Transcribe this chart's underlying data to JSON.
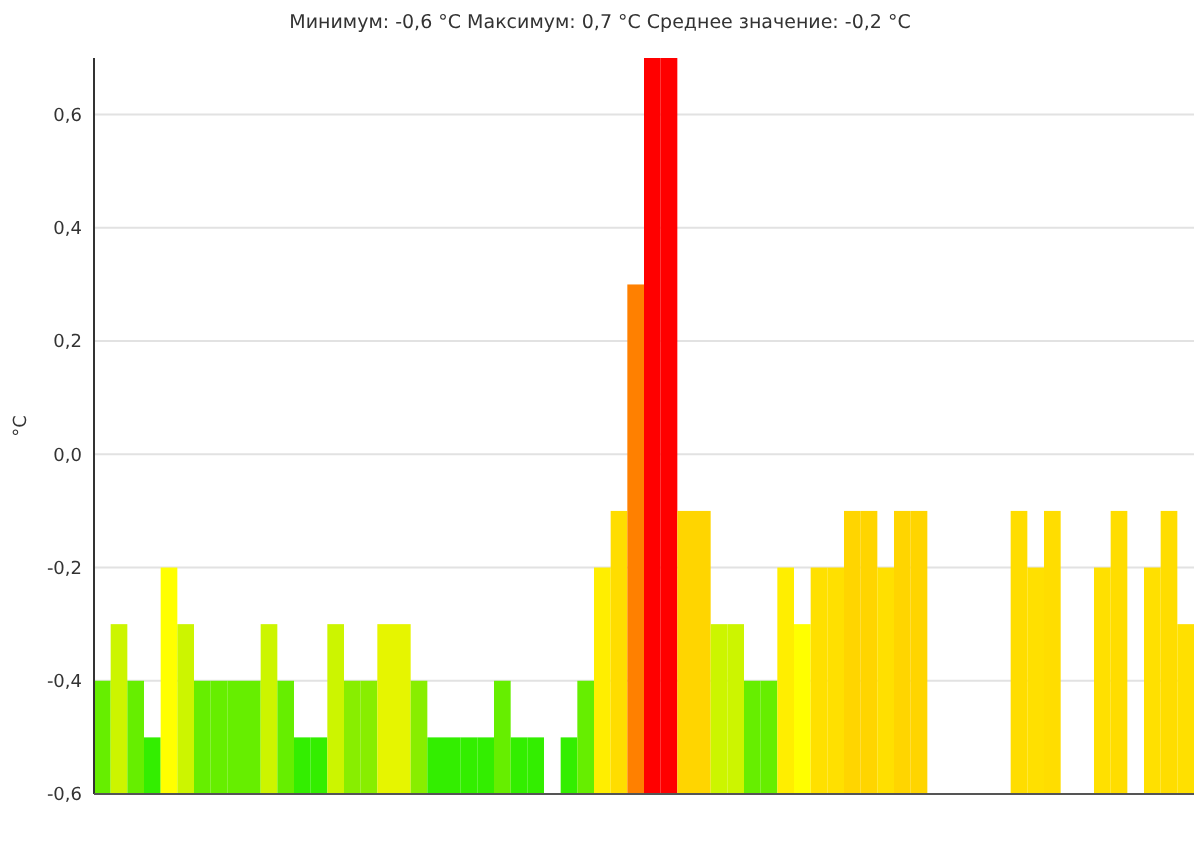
{
  "chart_data": {
    "type": "bar",
    "title": "Минимум:  -0,6  °C Максимум: 0,7  °C Среднее  значение:  -0,2  °C",
    "ylabel": "°C",
    "categories": [
      null,
      null,
      null,
      null,
      null,
      null,
      null,
      null,
      null,
      null,
      null,
      null,
      null,
      null,
      null,
      null,
      null,
      null,
      null,
      null,
      null,
      null,
      null,
      null,
      null,
      null,
      null,
      null,
      null,
      null,
      null,
      null,
      null,
      null,
      null,
      null,
      null,
      null,
      null,
      null,
      null,
      null,
      null,
      null,
      null,
      null,
      null,
      null,
      null,
      null,
      null,
      null,
      null,
      null,
      null,
      null,
      null,
      null,
      null,
      null,
      null,
      null,
      null,
      null,
      null,
      null
    ],
    "base": [
      -0.6,
      -0.6,
      -0.6,
      -0.6,
      -0.6,
      -0.6,
      -0.6,
      -0.6,
      -0.6,
      -0.6,
      -0.6,
      -0.6,
      -0.6,
      -0.6,
      -0.6,
      -0.6,
      -0.6,
      -0.6,
      -0.6,
      -0.6,
      -0.6,
      -0.6,
      -0.6,
      -0.6,
      -0.6,
      -0.6,
      -0.6,
      null,
      -0.6,
      -0.6,
      -0.6,
      -0.6,
      -0.6,
      -0.6,
      -0.6,
      -0.6,
      -0.6,
      -0.6,
      -0.6,
      -0.6,
      -0.6,
      -0.6,
      -0.6,
      -0.6,
      -0.6,
      -0.6,
      -0.6,
      -0.6,
      -0.6,
      -0.6,
      null,
      null,
      null,
      null,
      null,
      -0.6,
      -0.6,
      -0.6,
      null,
      null,
      -0.6,
      -0.6,
      null,
      -0.6,
      -0.6,
      -0.6
    ],
    "values": [
      0.2,
      0.3,
      0.2,
      0.1,
      0.4,
      0.3,
      0.2,
      0.2,
      0.2,
      0.2,
      0.3,
      0.2,
      0.1,
      0.1,
      0.3,
      0.2,
      0.2,
      0.3,
      0.3,
      0.2,
      0.1,
      0.1,
      0.1,
      0.1,
      0.2,
      0.1,
      0.1,
      null,
      0.1,
      0.2,
      0.4,
      0.5,
      0.9,
      1.3,
      1.3,
      0.5,
      0.5,
      0.3,
      0.3,
      0.2,
      0.2,
      0.4,
      0.3,
      0.4,
      0.4,
      0.5,
      0.5,
      0.4,
      0.5,
      0.5,
      null,
      null,
      null,
      null,
      null,
      0.5,
      0.4,
      0.5,
      null,
      null,
      0.4,
      0.5,
      null,
      0.4,
      0.5,
      0.3
    ],
    "colors": [
      "#66ee00",
      "#ccf500",
      "#66ee00",
      "#33ee00",
      "#ffff00",
      "#ccf500",
      "#66ee00",
      "#66ee00",
      "#66ee00",
      "#66ee00",
      "#ccf500",
      "#66ee00",
      "#33ee00",
      "#33ee00",
      "#ccf500",
      "#88ee00",
      "#88ee00",
      "#e6f500",
      "#e6f500",
      "#88ee00",
      "#33ee00",
      "#33ee00",
      "#33ee00",
      "#33ee00",
      "#66ee00",
      "#33ee00",
      "#33ee00",
      null,
      "#33ee00",
      "#66ee00",
      "#ffee00",
      "#ffdd00",
      "#ff8000",
      "#ff0000",
      "#ff0000",
      "#ffd500",
      "#ffd500",
      "#ccf500",
      "#ccf500",
      "#66ee00",
      "#66ee00",
      "#ffee00",
      "#ffff00",
      "#ffe000",
      "#ffe000",
      "#ffd500",
      "#ffd500",
      "#ffe000",
      "#ffd500",
      "#ffd500",
      null,
      null,
      null,
      null,
      null,
      "#ffdd00",
      "#ffe000",
      "#ffdd00",
      null,
      null,
      "#ffe000",
      "#ffdd00",
      null,
      "#ffe000",
      "#ffdd00",
      "#ffe000"
    ],
    "ylim": [
      -0.6,
      0.7
    ],
    "yticks": [
      {
        "value": -0.6,
        "label": "-0,6"
      },
      {
        "value": -0.4,
        "label": "-0,4"
      },
      {
        "value": -0.2,
        "label": "-0,2"
      },
      {
        "value": 0,
        "label": "0,0"
      },
      {
        "value": 0.2,
        "label": "0,2"
      },
      {
        "value": 0.4,
        "label": "0,4"
      },
      {
        "value": 0.6,
        "label": "0,6"
      }
    ],
    "grid": "y"
  }
}
